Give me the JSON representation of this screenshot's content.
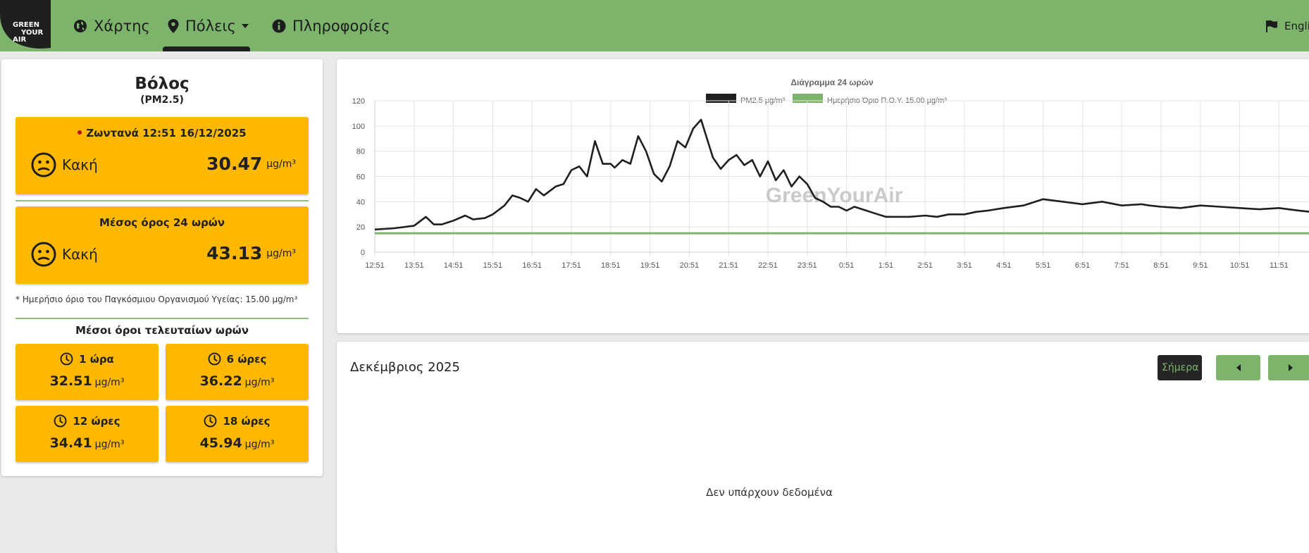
{
  "navbar": {
    "logo_lines": [
      "GREEN",
      "YOUR",
      "AIR"
    ],
    "items": [
      {
        "label": "Χάρτης",
        "icon": "globe-icon"
      },
      {
        "label": "Πόλεις",
        "icon": "map-pin-icon"
      },
      {
        "label": "Πληροφορίες",
        "icon": "info-icon"
      }
    ],
    "language": {
      "label": "English",
      "icon": "flag-icon"
    },
    "colors": {
      "bar": "#7cb46b",
      "active_underline": "#1f1f1f"
    }
  },
  "city": {
    "name": "Βόλος",
    "pollutant": "(PM2.5)"
  },
  "live": {
    "header": "Ζωντανά 12:51 16/12/2025",
    "status": "Κακή",
    "value": "30.47",
    "unit": "μg/m³",
    "face_icon": "neutral-face-icon"
  },
  "avg24": {
    "header": "Μέσος όρος 24 ωρών",
    "status": "Κακή",
    "value": "43.13",
    "unit": "μg/m³",
    "face_icon": "neutral-face-icon"
  },
  "who_note": "* Ημερήσιο όριο του Παγκόσμιου Οργανισμού Υγείας: 15.00 μg/m³",
  "recent": {
    "title": "Μέσοι όροι τελευταίων ωρών",
    "unit": "μg/m³",
    "items": [
      {
        "label": "1 ώρα",
        "value": "32.51"
      },
      {
        "label": "6 ώρες",
        "value": "36.22"
      },
      {
        "label": "12 ώρες",
        "value": "34.41"
      },
      {
        "label": "18 ώρες",
        "value": "45.94"
      }
    ]
  },
  "status_color": "#ffb800",
  "chart_data": {
    "type": "line",
    "title": "Διάγραμμα 24 ωρών",
    "watermark": "GreenYourAir",
    "legend": [
      {
        "name": "PM2.5 μg/m³",
        "color": "#1f1f1f"
      },
      {
        "name": "Ημερήσιο Όριο Π.Ο.Υ. 15.00 μg/m³",
        "color": "#7cb46b"
      }
    ],
    "legend_position": "top-center",
    "grid": true,
    "ylim": [
      0,
      120
    ],
    "yticks": [
      0,
      20,
      40,
      60,
      80,
      100,
      120
    ],
    "xticks": [
      "12:51",
      "13:51",
      "14:51",
      "15:51",
      "16:51",
      "17:51",
      "18:51",
      "19:51",
      "20:51",
      "21:51",
      "22:51",
      "23:51",
      "0:51",
      "1:51",
      "2:51",
      "3:51",
      "4:51",
      "5:51",
      "6:51",
      "7:51",
      "8:51",
      "9:51",
      "10:51",
      "11:51"
    ],
    "x_hours_start": 0,
    "series": [
      {
        "name": "PM2.5 μg/m³",
        "x": [
          0,
          0.5,
          1,
          1.3,
          1.5,
          1.7,
          2,
          2.3,
          2.5,
          2.8,
          3,
          3.3,
          3.5,
          3.7,
          3.9,
          4.1,
          4.3,
          4.6,
          4.8,
          5,
          5.2,
          5.4,
          5.6,
          5.8,
          6,
          6.1,
          6.3,
          6.5,
          6.7,
          6.9,
          7.1,
          7.3,
          7.5,
          7.7,
          7.9,
          8.1,
          8.3,
          8.6,
          8.8,
          9,
          9.2,
          9.4,
          9.6,
          9.8,
          10,
          10.2,
          10.4,
          10.6,
          10.8,
          11,
          11.2,
          11.4,
          11.6,
          11.8,
          12,
          12.2,
          12.5,
          12.8,
          13,
          13.3,
          13.6,
          14,
          14.3,
          14.6,
          15,
          15.3,
          15.6,
          16,
          16.5,
          17,
          17.5,
          18,
          18.5,
          19,
          19.5,
          19.7,
          20,
          20.5,
          21,
          21.5,
          22,
          22.5,
          23,
          23.5,
          23.8
        ],
        "values": [
          18,
          19,
          21,
          28,
          22,
          22,
          25,
          29,
          26,
          27,
          30,
          37,
          45,
          43,
          40,
          50,
          45,
          52,
          54,
          65,
          68,
          60,
          88,
          70,
          70,
          67,
          73,
          70,
          92,
          80,
          62,
          56,
          68,
          88,
          83,
          98,
          105,
          75,
          66,
          73,
          77,
          69,
          73,
          60,
          72,
          57,
          65,
          52,
          60,
          54,
          43,
          40,
          36,
          36,
          33,
          36,
          33,
          30,
          28,
          28,
          28,
          29,
          28,
          30,
          30,
          32,
          33,
          35,
          37,
          42,
          40,
          38,
          40,
          37,
          38,
          37,
          36,
          35,
          37,
          36,
          35,
          34,
          35,
          33,
          32
        ]
      },
      {
        "name": "Ημερήσιο Όριο Π.Ο.Υ. 15.00 μg/m³",
        "x": [
          0,
          23.8
        ],
        "values": [
          15,
          15
        ]
      }
    ]
  },
  "calendar": {
    "title": "Δεκέμβριος 2025",
    "today_label": "Σήμερα",
    "no_data": "Δεν υπάρχουν δεδομένα"
  }
}
